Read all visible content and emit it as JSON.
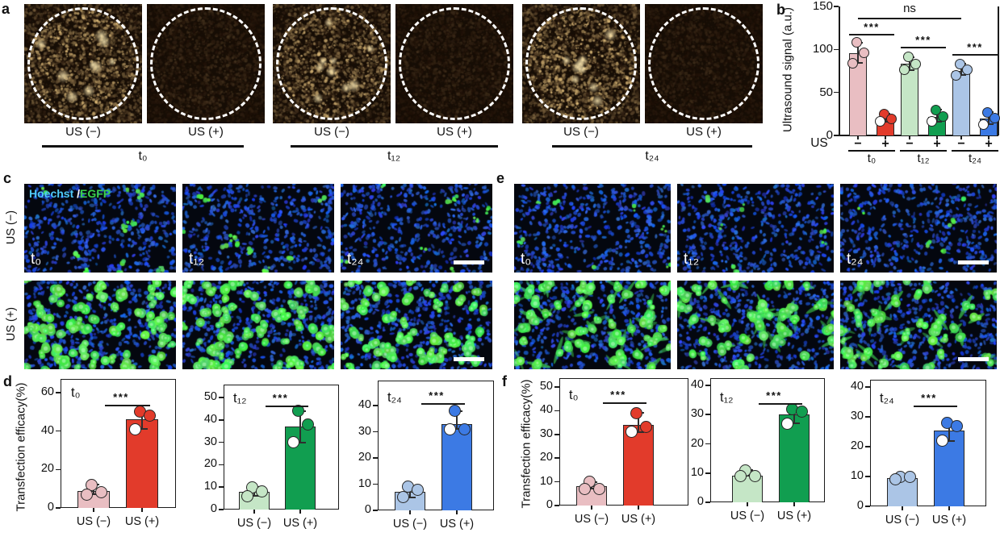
{
  "panels": {
    "a": {
      "letter": "a",
      "captions": [
        "US (−)",
        "US (+)",
        "US (−)",
        "US (+)",
        "US (−)",
        "US (+)"
      ],
      "groups": [
        "t₀",
        "t₁₂",
        "t₂₄"
      ]
    },
    "b": {
      "letter": "b"
    },
    "c": {
      "letter": "c",
      "overlay": {
        "hoechst": "Hoechst",
        "slash": " /",
        "egfp": "EGFP",
        "hoechst_color": "#4ec9f7",
        "egfp_color": "#3ad04b"
      },
      "row_labels": [
        "US (−)",
        "US (+)"
      ],
      "times": [
        "t₀",
        "t₁₂",
        "t₂₄"
      ]
    },
    "e": {
      "letter": "e",
      "times": [
        "t₀",
        "t₁₂",
        "t₂₄"
      ]
    },
    "d": {
      "letter": "d"
    },
    "f": {
      "letter": "f"
    }
  },
  "chart_data": [
    {
      "id": "b",
      "type": "bar",
      "ylabel": "Ultrasound signal (a.u.)",
      "ylim": [
        0,
        150
      ],
      "yticks": [
        0,
        50,
        100,
        150
      ],
      "x_prefix": "US",
      "groups": [
        "t₀",
        "t₁₂",
        "t₂₄"
      ],
      "bars": [
        {
          "group": 0,
          "sign": "−",
          "value": 96,
          "points": [
            108,
            96,
            84
          ],
          "color": "#e9bec2"
        },
        {
          "group": 0,
          "sign": "+",
          "value": 20,
          "points": [
            25,
            19,
            16
          ],
          "color": "#e23b2b"
        },
        {
          "group": 1,
          "sign": "−",
          "value": 83,
          "points": [
            91,
            83,
            76
          ],
          "color": "#c5e6c6"
        },
        {
          "group": 1,
          "sign": "+",
          "value": 22,
          "points": [
            30,
            22,
            16
          ],
          "color": "#119e50"
        },
        {
          "group": 2,
          "sign": "−",
          "value": 75,
          "points": [
            83,
            76,
            70
          ],
          "color": "#abc5e6"
        },
        {
          "group": 2,
          "sign": "+",
          "value": 20,
          "points": [
            27,
            20,
            13
          ],
          "color": "#3c7ae4"
        }
      ],
      "sig": [
        {
          "label": "***",
          "a": 0,
          "b": 1
        },
        {
          "label": "***",
          "a": 2,
          "b": 3
        },
        {
          "label": "***",
          "a": 4,
          "b": 5
        },
        {
          "label": "ns",
          "a": 0,
          "b": 4
        }
      ]
    },
    {
      "id": "d1",
      "type": "bar",
      "title": "t₀",
      "ylabel": "Transfection efficacy(%)",
      "ylim": [
        0,
        60
      ],
      "yticks": [
        0,
        20,
        40,
        60
      ],
      "categories": [
        "US (−)",
        "US (+)"
      ],
      "values": [
        9,
        46
      ],
      "points": [
        [
          12,
          8,
          7
        ],
        [
          50,
          48,
          41
        ]
      ],
      "colors": [
        "#e9bec2",
        "#e23b2b"
      ],
      "sig": "***"
    },
    {
      "id": "d2",
      "type": "bar",
      "title": "t₁₂",
      "ylim": [
        0,
        50
      ],
      "yticks": [
        0,
        10,
        20,
        30,
        40,
        50
      ],
      "categories": [
        "US (−)",
        "US (+)"
      ],
      "values": [
        8,
        37
      ],
      "points": [
        [
          10,
          8,
          6
        ],
        [
          44,
          38,
          30
        ]
      ],
      "colors": [
        "#c5e6c6",
        "#119e50"
      ],
      "sig": "***"
    },
    {
      "id": "d3",
      "type": "bar",
      "title": "t₂₄",
      "ylim": [
        0,
        40
      ],
      "yticks": [
        0,
        10,
        20,
        30,
        40
      ],
      "categories": [
        "US (−)",
        "US (+)"
      ],
      "values": [
        7,
        33
      ],
      "points": [
        [
          9,
          8,
          5
        ],
        [
          38,
          31,
          31
        ]
      ],
      "colors": [
        "#abc5e6",
        "#3c7ae4"
      ],
      "sig": "***"
    },
    {
      "id": "f1",
      "type": "bar",
      "title": "t₀",
      "ylabel": "Transfection efficacy(%)",
      "ylim": [
        0,
        50
      ],
      "yticks": [
        0,
        10,
        20,
        30,
        40,
        50
      ],
      "categories": [
        "US (−)",
        "US (+)"
      ],
      "values": [
        8,
        34
      ],
      "points": [
        [
          10,
          7,
          7
        ],
        [
          39,
          33,
          31
        ]
      ],
      "colors": [
        "#e9bec2",
        "#e23b2b"
      ],
      "sig": "***"
    },
    {
      "id": "f2",
      "type": "bar",
      "title": "t₁₂",
      "ylim": [
        0,
        40
      ],
      "yticks": [
        0,
        10,
        20,
        30,
        40
      ],
      "categories": [
        "US (−)",
        "US (+)"
      ],
      "values": [
        9,
        30
      ],
      "points": [
        [
          11,
          9,
          9
        ],
        [
          32,
          31,
          27
        ]
      ],
      "colors": [
        "#c5e6c6",
        "#119e50"
      ],
      "sig": "***"
    },
    {
      "id": "f3",
      "type": "bar",
      "title": "t₂₄",
      "ylim": [
        0,
        40
      ],
      "yticks": [
        0,
        10,
        20,
        30,
        40
      ],
      "categories": [
        "US (−)",
        "US (+)"
      ],
      "values": [
        9.5,
        25.5
      ],
      "points": [
        [
          9,
          10,
          10
        ],
        [
          28,
          27,
          22
        ]
      ],
      "colors": [
        "#abc5e6",
        "#3c7ae4"
      ],
      "sig": "***"
    }
  ]
}
